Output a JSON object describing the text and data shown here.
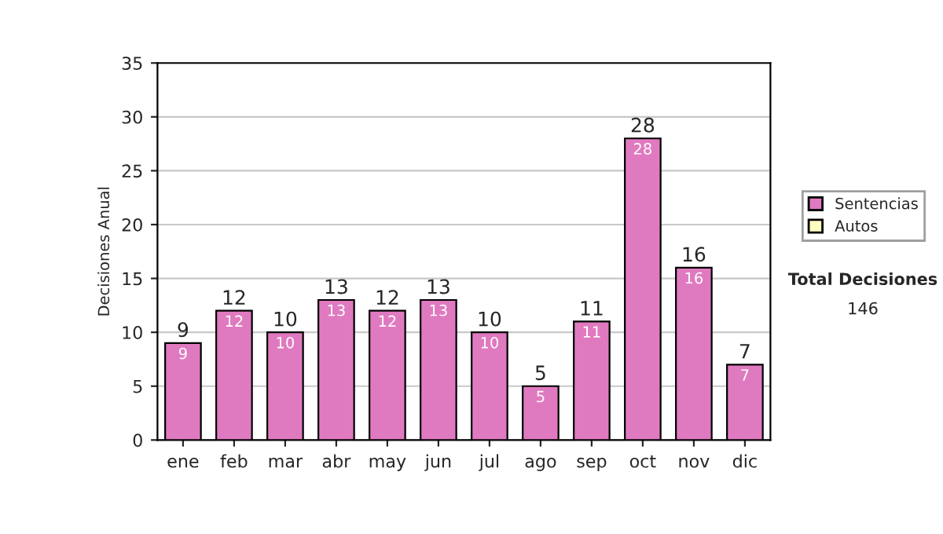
{
  "chart_data": {
    "type": "bar",
    "stacked": true,
    "ylabel": "Decisiones Anual",
    "categories": [
      "ene",
      "feb",
      "mar",
      "abr",
      "may",
      "jun",
      "jul",
      "ago",
      "sep",
      "oct",
      "nov",
      "dic"
    ],
    "series": [
      {
        "name": "Sentencias",
        "color": "#e07ac0",
        "values": [
          9,
          12,
          10,
          13,
          12,
          13,
          10,
          5,
          11,
          28,
          16,
          7
        ],
        "value_labels": [
          "9",
          "12",
          "10",
          "13",
          "12",
          "13",
          "10",
          "5",
          "11",
          "28",
          "16",
          "7"
        ]
      },
      {
        "name": "Autos",
        "color": "#ffffc0",
        "values": [
          null,
          null,
          null,
          null,
          null,
          null,
          null,
          null,
          null,
          null,
          null,
          null
        ]
      }
    ],
    "totals": [
      "9",
      "12",
      "10",
      "13",
      "12",
      "13",
      "10",
      "5",
      "11",
      "28",
      "16",
      "7"
    ],
    "ylim": [
      0,
      35
    ],
    "yticks": [
      0,
      5,
      10,
      15,
      20,
      25,
      30,
      35
    ],
    "grid": "y",
    "legend": "right",
    "annotations": [
      "Total Decisiones",
      "146"
    ]
  }
}
